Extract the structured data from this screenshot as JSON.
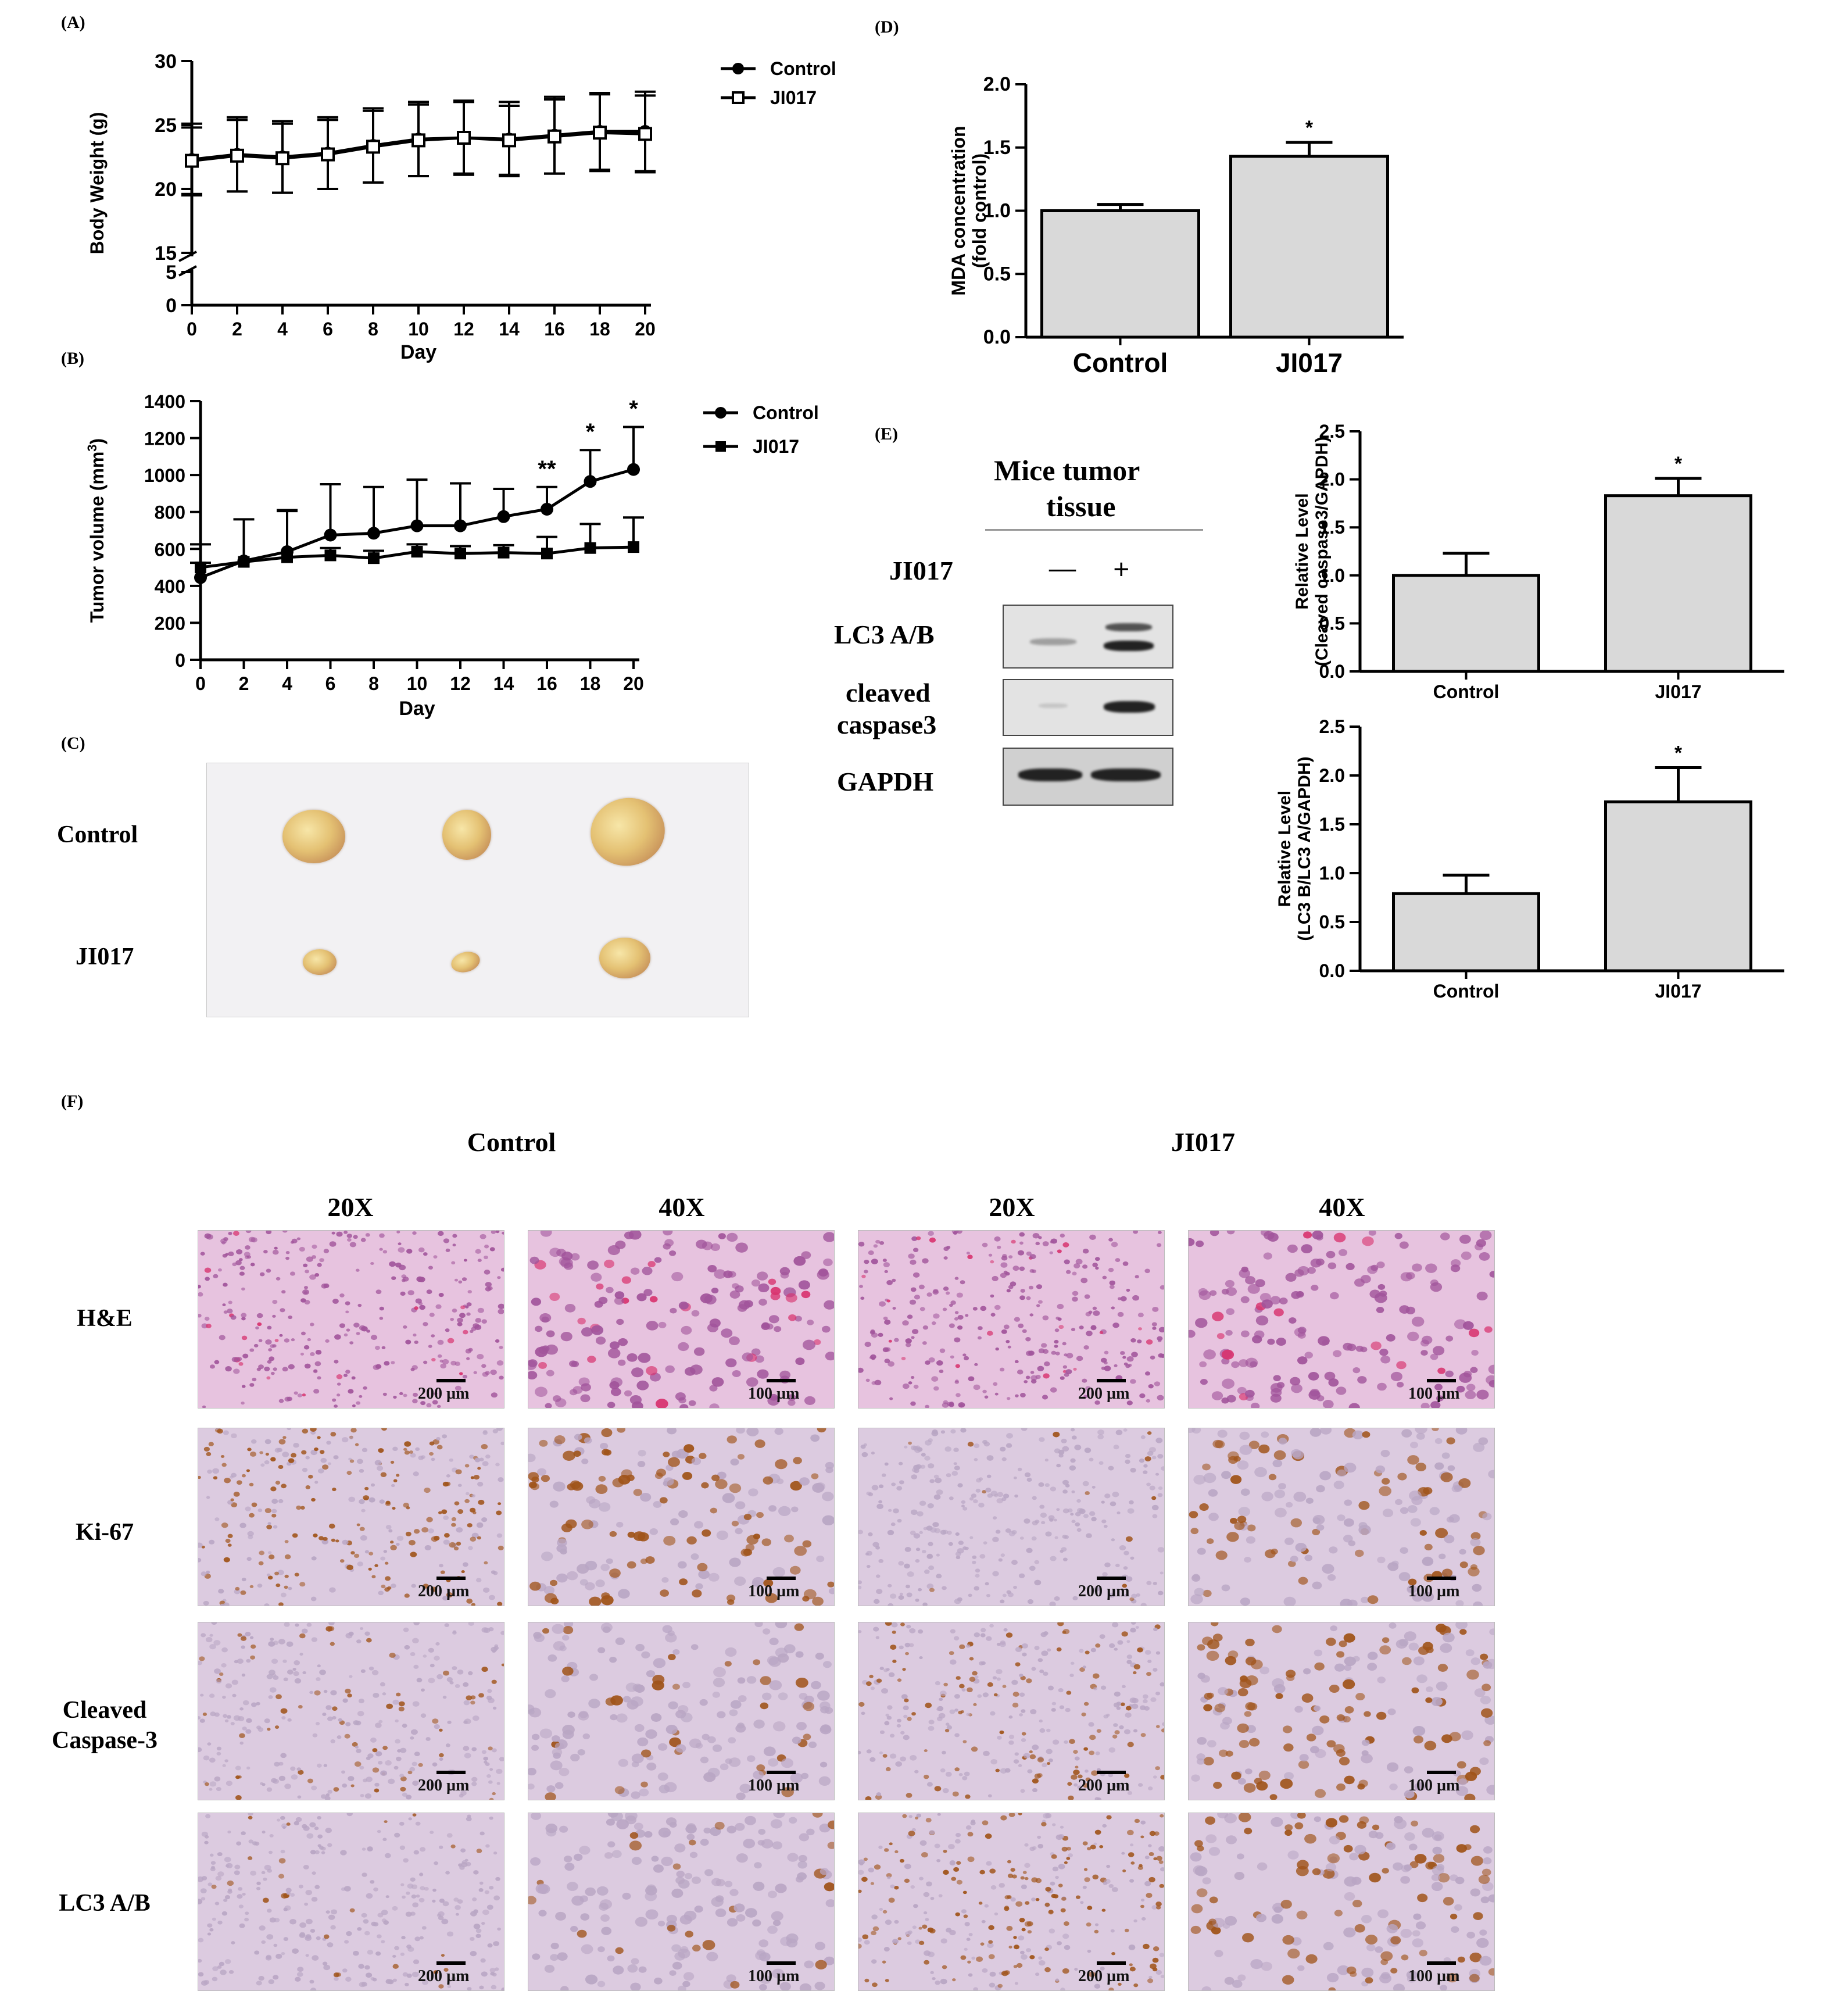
{
  "panel_labels": {
    "a": "(A)",
    "b": "(B)",
    "c": "(C)",
    "d": "(D)",
    "e": "(E)",
    "f": "(F)"
  },
  "chart_data": [
    {
      "id": "A",
      "type": "line",
      "xlabel": "Day",
      "ylabel": "Body Weight (g)",
      "x": [
        0,
        2,
        4,
        6,
        8,
        10,
        12,
        14,
        16,
        18,
        20
      ],
      "ylim": [
        0,
        30
      ],
      "broken_axis": {
        "lower": [
          0,
          5
        ],
        "upper": [
          15,
          30
        ]
      },
      "yticks_upper": [
        "15",
        "20",
        "25",
        "30"
      ],
      "yticks_lower": [
        "0",
        "5"
      ],
      "series": [
        {
          "name": "Control",
          "marker": "filled-circle",
          "values": [
            22.3,
            22.7,
            22.5,
            22.8,
            23.4,
            23.9,
            24.0,
            23.9,
            24.2,
            24.5,
            24.5
          ],
          "err": [
            2.8,
            2.9,
            2.8,
            2.8,
            2.9,
            2.9,
            2.9,
            2.9,
            3.0,
            3.0,
            3.1
          ]
        },
        {
          "name": "JI017",
          "marker": "open-square",
          "values": [
            22.2,
            22.6,
            22.4,
            22.7,
            23.3,
            23.8,
            24.0,
            23.8,
            24.1,
            24.4,
            24.3
          ],
          "err": [
            2.6,
            2.8,
            2.7,
            2.7,
            2.8,
            2.8,
            2.8,
            2.7,
            2.9,
            3.0,
            3.0
          ]
        }
      ]
    },
    {
      "id": "B",
      "type": "line",
      "xlabel": "Day",
      "ylabel": "Tumor volume (mm",
      "ylabel_sup": "3",
      "ylabel_close": ")",
      "x": [
        0,
        2,
        4,
        6,
        8,
        10,
        12,
        14,
        16,
        18,
        20
      ],
      "ylim": [
        0,
        1400
      ],
      "yticks": [
        "0",
        "200",
        "400",
        "600",
        "800",
        "1000",
        "1200",
        "1400"
      ],
      "series": [
        {
          "name": "Control",
          "marker": "filled-circle",
          "values": [
            445,
            535,
            585,
            675,
            685,
            725,
            725,
            775,
            815,
            965,
            1030
          ],
          "err": [
            80,
            0,
            225,
            275,
            250,
            250,
            230,
            150,
            120,
            170,
            230
          ]
        },
        {
          "name": "JI017",
          "marker": "filled-square",
          "values": [
            500,
            530,
            555,
            565,
            550,
            585,
            575,
            580,
            575,
            605,
            610
          ],
          "err": [
            125,
            230,
            250,
            40,
            40,
            40,
            40,
            40,
            90,
            130,
            160
          ]
        }
      ],
      "annotations": [
        {
          "x": 16,
          "text": "**"
        },
        {
          "x": 18,
          "text": "*"
        },
        {
          "x": 20,
          "text": "*"
        }
      ]
    },
    {
      "id": "D",
      "type": "bar",
      "categories": [
        "Control",
        "JI017"
      ],
      "values": [
        1.0,
        1.43
      ],
      "err": [
        0.05,
        0.11
      ],
      "ylabel": "MDA concentration",
      "ylabel2": "(fold control)",
      "ylim": [
        0,
        2.0
      ],
      "yticks": [
        "0.0",
        "0.5",
        "1.0",
        "1.5",
        "2.0"
      ],
      "annotations": [
        "",
        "*"
      ]
    },
    {
      "id": "E1",
      "type": "bar",
      "categories": [
        "Control",
        "JI017"
      ],
      "values": [
        1.0,
        1.83
      ],
      "err": [
        0.23,
        0.18
      ],
      "ylabel": "Relative Level",
      "ylabel2": "(Cleaved caspase3/GAPDH)",
      "ylim": [
        0,
        2.5
      ],
      "yticks": [
        "0.0",
        "0.5",
        "1.0",
        "1.5",
        "2.0",
        "2.5"
      ],
      "annotations": [
        "",
        "*"
      ]
    },
    {
      "id": "E2",
      "type": "bar",
      "categories": [
        "Control",
        "JI017"
      ],
      "values": [
        0.79,
        1.73
      ],
      "err": [
        0.19,
        0.35
      ],
      "ylabel": "Relative Level",
      "ylabel2": "(LC3 B/LC3 A/GAPDH)",
      "ylim": [
        0,
        2.5
      ],
      "yticks": [
        "0.0",
        "0.5",
        "1.0",
        "1.5",
        "2.0",
        "2.5"
      ],
      "annotations": [
        "",
        "*"
      ]
    }
  ],
  "panel_c": {
    "row_labels": [
      "Control",
      "JI017"
    ]
  },
  "panel_e": {
    "title_line1": "Mice tumor",
    "title_line2": "tissue",
    "treatment_label": "JI017",
    "minus": "—",
    "plus": "+",
    "blots": [
      "LC3 A/B",
      "cleaved",
      "caspase3",
      "GAPDH"
    ]
  },
  "panel_f": {
    "group_labels": [
      "Control",
      "JI017"
    ],
    "col_labels": [
      "20X",
      "40X",
      "20X",
      "40X"
    ],
    "row_labels": [
      "H&E",
      "Ki-67",
      "Cleaved",
      "Caspase-3",
      "LC3 A/B"
    ],
    "scale_labels": [
      "200 µm",
      "100 µm",
      "200 µm",
      "100 µm"
    ]
  },
  "colors": {
    "bar_fill": "#d9d9d9",
    "stroke": "#000000",
    "he_bg": "#e7c3df",
    "he_nuclei": "#a1549b",
    "ihc_bg": "#dccbe0",
    "ihc_pos": "#a0541a"
  }
}
